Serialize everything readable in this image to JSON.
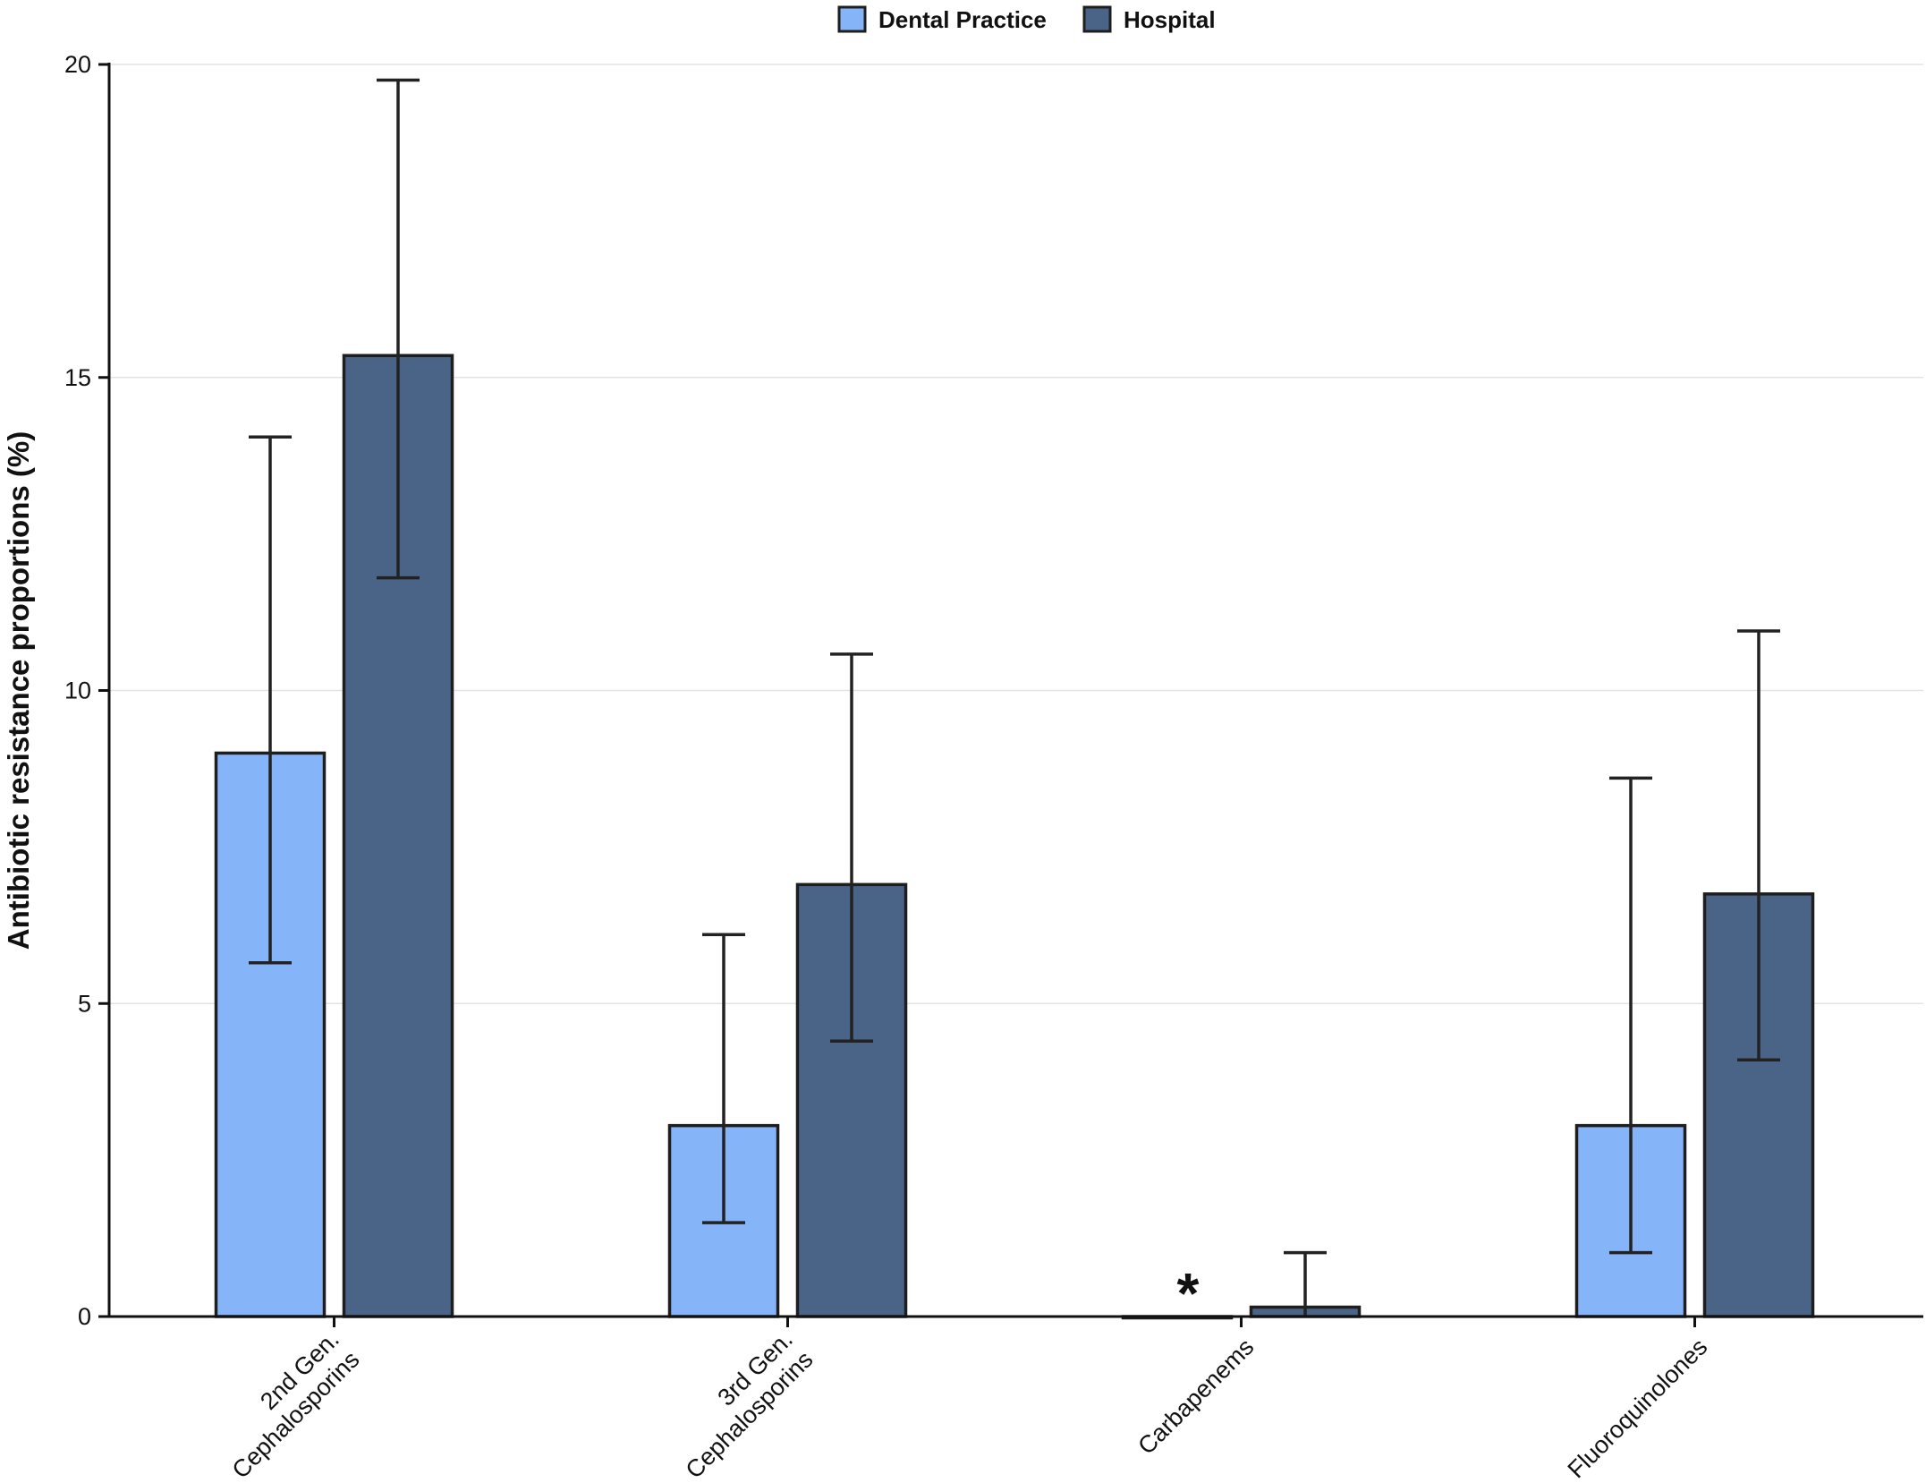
{
  "chart_data": {
    "type": "bar",
    "title": "",
    "xlabel": "",
    "ylabel": "Antibiotic resistance proportions (%)",
    "ylim": [
      0,
      20
    ],
    "yticks": [
      0,
      5,
      10,
      15,
      20
    ],
    "grid": true,
    "legend_position": "top-center",
    "categories": [
      [
        "2nd Gen.",
        "Cephalosporins"
      ],
      [
        "3rd Gen.",
        "Cephalosporins"
      ],
      [
        "Carbapenems"
      ],
      [
        "Fluoroquinolones"
      ]
    ],
    "series": [
      {
        "name": "Dental Practice",
        "color": "#85b5f8",
        "values": [
          9.0,
          3.05,
          0.0,
          3.05
        ],
        "error_low": [
          5.65,
          1.5,
          0.0,
          1.02
        ],
        "error_high": [
          14.05,
          6.1,
          0.0,
          8.6
        ]
      },
      {
        "name": "Hospital",
        "color": "#4a6488",
        "values": [
          15.35,
          6.9,
          0.15,
          6.75
        ],
        "error_low": [
          11.8,
          4.4,
          0.0,
          4.1
        ],
        "error_high": [
          19.75,
          10.58,
          1.02,
          10.95
        ]
      }
    ],
    "annotations": [
      {
        "text": "*",
        "category_index": 2,
        "series_index": 0
      }
    ]
  }
}
